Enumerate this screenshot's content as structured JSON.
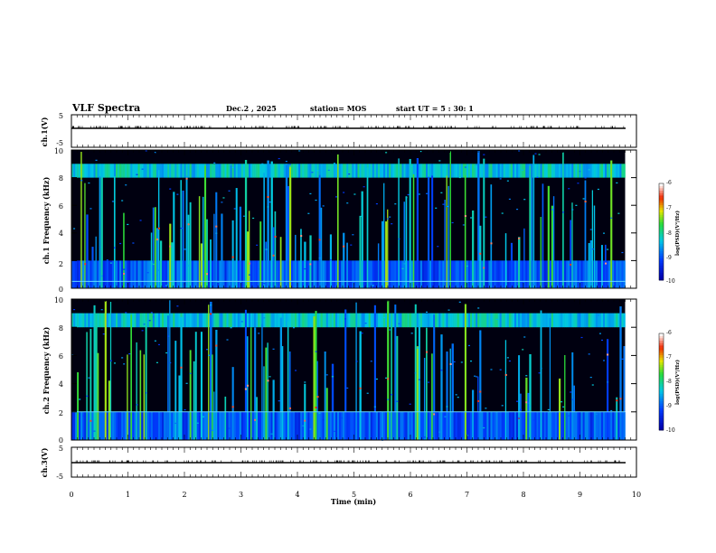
{
  "header": {
    "title": "VLF Spectra",
    "date": "Dec.2 , 2025",
    "station": "station= MOS",
    "start": "start UT = 5 : 30: 1"
  },
  "chart_data": [
    {
      "id": "ch1_waveform",
      "type": "line",
      "ylabel": "ch.1(V)",
      "ylim": [
        -5,
        5
      ],
      "yticks": [
        "5",
        "-5"
      ],
      "series": [
        {
          "name": "ch.1",
          "x": [
            0,
            9.8
          ],
          "y": [
            0,
            0
          ]
        }
      ]
    },
    {
      "id": "ch1_spectrogram",
      "type": "heatmap",
      "ylabel": "ch.1 Frequency (kHz)",
      "ylim": [
        0,
        10
      ],
      "yticks": [
        "0",
        "2",
        "4",
        "6",
        "8",
        "10"
      ],
      "xlim": [
        0,
        10
      ],
      "data_xmax": 9.8,
      "colorbar": {
        "label": "log(PSD)(V²/Hz)",
        "range": [
          -10,
          -6
        ],
        "ticks": [
          "-6",
          "-7",
          "-8",
          "-9",
          "-10"
        ]
      },
      "features": {
        "band_khz": [
          8,
          9
        ],
        "low_band_khz": [
          0,
          2
        ],
        "line_khz": 0.5
      }
    },
    {
      "id": "ch2_spectrogram",
      "type": "heatmap",
      "ylabel": "ch.2 Frequency (kHz)",
      "ylim": [
        0,
        10
      ],
      "yticks": [
        "0",
        "2",
        "4",
        "6",
        "8",
        "10"
      ],
      "xlim": [
        0,
        10
      ],
      "data_xmax": 9.8,
      "colorbar": {
        "label": "log(PSD)(V²/Hz)",
        "range": [
          -10,
          -6
        ],
        "ticks": [
          "-6",
          "-7",
          "-8",
          "-9",
          "-10"
        ]
      },
      "features": {
        "band_khz": [
          8,
          9
        ],
        "low_band_khz": [
          0,
          2
        ],
        "line_khz": 2
      }
    },
    {
      "id": "ch3_waveform",
      "type": "line",
      "ylabel": "ch.3(V)",
      "ylim": [
        -5,
        5
      ],
      "yticks": [
        "5",
        "-5"
      ],
      "series": [
        {
          "name": "ch.3",
          "x": [
            0,
            9.8
          ],
          "y": [
            0,
            0
          ]
        }
      ]
    }
  ],
  "xaxis": {
    "label": "Time (min)",
    "ticks": [
      "0",
      "1",
      "2",
      "3",
      "4",
      "5",
      "6",
      "7",
      "8",
      "9",
      "10"
    ]
  }
}
